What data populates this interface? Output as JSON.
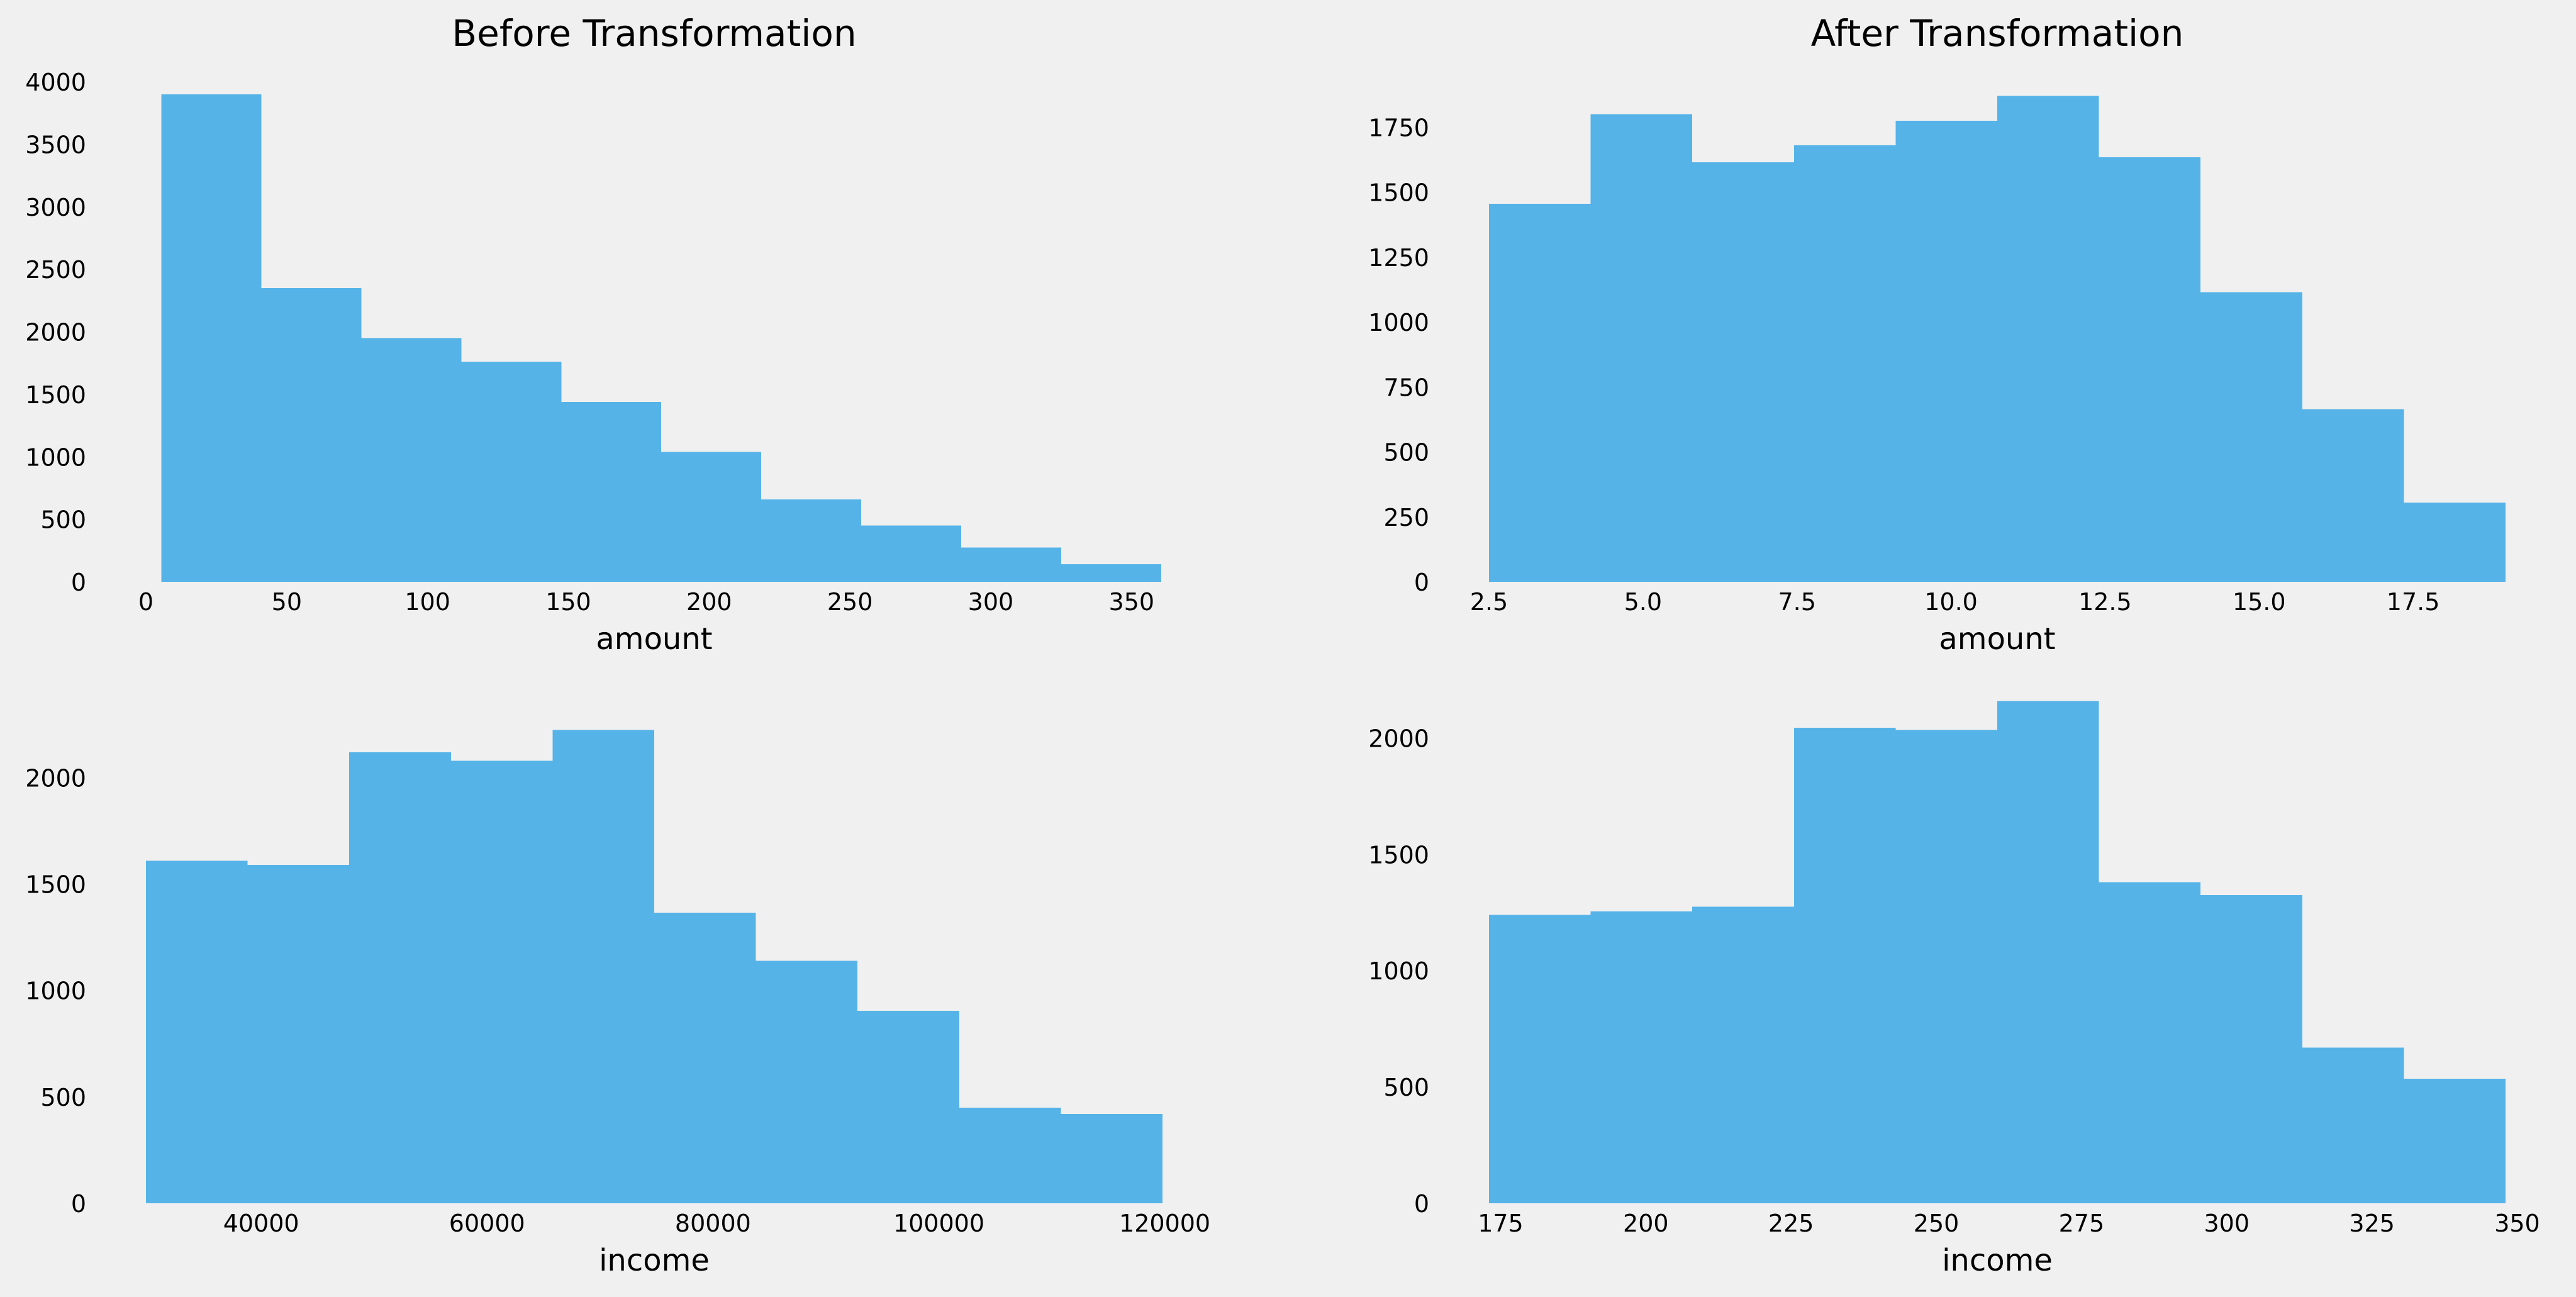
{
  "colors": {
    "background": "#f0f0f0",
    "bar": "#56b3e8",
    "text": "#000000"
  },
  "chart_data": [
    {
      "type": "bar",
      "panel": "top-left",
      "title": "Before Transformation",
      "xlabel": "amount",
      "ylabel": "",
      "bin_edges": [
        5.5,
        41,
        76.5,
        112,
        147.5,
        183,
        218.5,
        254,
        289.5,
        325,
        360.5
      ],
      "values": [
        3900,
        2350,
        1950,
        1760,
        1440,
        1040,
        660,
        450,
        275,
        140
      ],
      "xlim": [
        0,
        361
      ],
      "ylim": [
        0,
        4000
      ],
      "xticks": [
        0,
        50,
        100,
        150,
        200,
        250,
        300,
        350
      ],
      "yticks": [
        0,
        500,
        1000,
        1500,
        2000,
        2500,
        3000,
        3500,
        4000
      ],
      "xtick_labels": [
        "0",
        "50",
        "100",
        "150",
        "200",
        "250",
        "300",
        "350"
      ],
      "ytick_labels": [
        "0",
        "500",
        "1000",
        "1500",
        "2000",
        "2500",
        "3000",
        "3500",
        "4000"
      ]
    },
    {
      "type": "bar",
      "panel": "top-right",
      "title": "After Transformation",
      "xlabel": "amount",
      "ylabel": "",
      "bin_edges": [
        2.5,
        4.15,
        5.8,
        7.45,
        9.1,
        10.75,
        12.4,
        14.05,
        15.7,
        17.35,
        19
      ],
      "values": [
        1455,
        1800,
        1615,
        1680,
        1775,
        1870,
        1635,
        1115,
        665,
        305
      ],
      "xlim": [
        2.5,
        19
      ],
      "ylim": [
        0,
        1925
      ],
      "xticks": [
        2.5,
        5.0,
        7.5,
        10.0,
        12.5,
        15.0,
        17.5
      ],
      "yticks": [
        0,
        250,
        500,
        750,
        1000,
        1250,
        1500,
        1750
      ],
      "xtick_labels": [
        "2.5",
        "5.0",
        "7.5",
        "10.0",
        "12.5",
        "15.0",
        "17.5"
      ],
      "ytick_labels": [
        "0",
        "250",
        "500",
        "750",
        "1000",
        "1250",
        "1500",
        "1750"
      ]
    },
    {
      "type": "bar",
      "panel": "bottom-left",
      "title": "",
      "xlabel": "income",
      "ylabel": "",
      "bin_edges": [
        29800,
        38800,
        47800,
        56800,
        65800,
        74800,
        83800,
        92800,
        101800,
        110800,
        119800
      ],
      "values": [
        1610,
        1590,
        2120,
        2080,
        2225,
        1365,
        1140,
        905,
        450,
        420
      ],
      "xlim": [
        29800,
        119800
      ],
      "ylim": [
        0,
        2350
      ],
      "xticks": [
        40000,
        60000,
        80000,
        100000,
        120000
      ],
      "yticks": [
        0,
        500,
        1000,
        1500,
        2000
      ],
      "xtick_labels": [
        "40000",
        "60000",
        "80000",
        "100000",
        "120000"
      ],
      "ytick_labels": [
        "0",
        "500",
        "1000",
        "1500",
        "2000"
      ]
    },
    {
      "type": "bar",
      "panel": "bottom-right",
      "title": "",
      "xlabel": "income",
      "ylabel": "",
      "bin_edges": [
        173,
        190.5,
        208,
        225.5,
        243,
        260.5,
        278,
        295.5,
        313,
        330.5,
        348
      ],
      "values": [
        1240,
        1255,
        1275,
        2045,
        2035,
        2160,
        1380,
        1325,
        670,
        535
      ],
      "xlim": [
        173,
        348
      ],
      "ylim": [
        0,
        2150
      ],
      "xticks": [
        175,
        200,
        225,
        250,
        275,
        300,
        325,
        350
      ],
      "yticks": [
        0,
        500,
        1000,
        1500,
        2000
      ],
      "xtick_labels": [
        "175",
        "200",
        "225",
        "250",
        "275",
        "300",
        "325",
        "350"
      ],
      "ytick_labels": [
        "0",
        "500",
        "1000",
        "1500",
        "2000"
      ]
    }
  ]
}
